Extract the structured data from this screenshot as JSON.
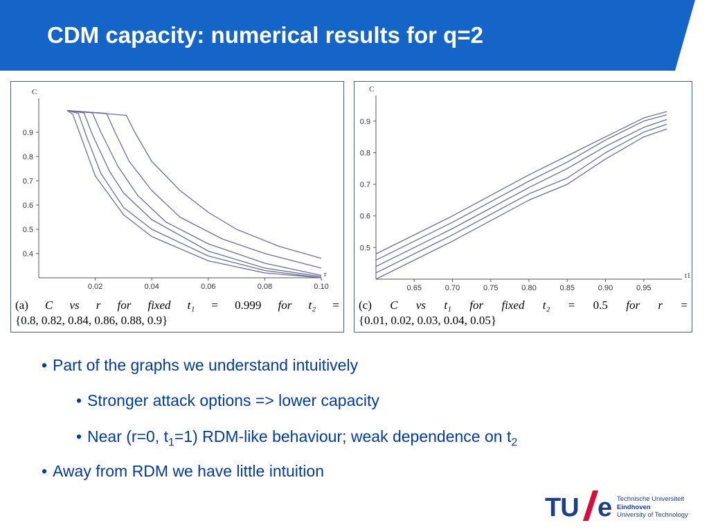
{
  "slide": {
    "title": "CDM capacity: numerical results for q=2",
    "header_color": "#1565c8"
  },
  "chart_data": [
    {
      "type": "line",
      "ylabel": "C",
      "xlabel": "r",
      "xlim": [
        0,
        0.1
      ],
      "ylim": [
        0.3,
        1.0
      ],
      "xticks": [
        "0.02",
        "0.04",
        "0.06",
        "0.08",
        "0.10"
      ],
      "yticks": [
        "0.4",
        "0.5",
        "0.6",
        "0.7",
        "0.8",
        "0.9"
      ],
      "caption_line1": [
        "(a)",
        "C",
        "vs",
        "r",
        "for",
        "fixed",
        "t₁",
        "=",
        "0.999",
        "for",
        "t₂",
        "="
      ],
      "caption_line2": "{0.8, 0.82, 0.84, 0.86, 0.88, 0.9}",
      "line_color": "#6b6c9a",
      "series": [
        {
          "x": [
            0.01,
            0.012,
            0.015,
            0.02,
            0.03,
            0.04,
            0.06,
            0.08,
            0.1
          ],
          "y": [
            0.99,
            0.975,
            0.88,
            0.72,
            0.56,
            0.47,
            0.37,
            0.32,
            0.3
          ]
        },
        {
          "x": [
            0.01,
            0.014,
            0.017,
            0.022,
            0.03,
            0.04,
            0.06,
            0.08,
            0.1
          ],
          "y": [
            0.99,
            0.978,
            0.88,
            0.73,
            0.59,
            0.5,
            0.39,
            0.33,
            0.3
          ]
        },
        {
          "x": [
            0.01,
            0.016,
            0.019,
            0.025,
            0.03,
            0.04,
            0.06,
            0.08,
            0.1
          ],
          "y": [
            0.99,
            0.98,
            0.89,
            0.74,
            0.65,
            0.54,
            0.41,
            0.34,
            0.305
          ]
        },
        {
          "x": [
            0.01,
            0.019,
            0.022,
            0.028,
            0.035,
            0.045,
            0.06,
            0.08,
            0.1
          ],
          "y": [
            0.99,
            0.98,
            0.9,
            0.76,
            0.64,
            0.53,
            0.44,
            0.36,
            0.31
          ]
        },
        {
          "x": [
            0.01,
            0.024,
            0.027,
            0.032,
            0.04,
            0.05,
            0.065,
            0.08,
            0.1
          ],
          "y": [
            0.99,
            0.978,
            0.9,
            0.78,
            0.66,
            0.55,
            0.46,
            0.4,
            0.34
          ]
        },
        {
          "x": [
            0.01,
            0.031,
            0.034,
            0.04,
            0.05,
            0.06,
            0.07,
            0.085,
            0.1
          ],
          "y": [
            0.99,
            0.97,
            0.9,
            0.78,
            0.66,
            0.57,
            0.5,
            0.43,
            0.38
          ]
        }
      ]
    },
    {
      "type": "line",
      "ylabel": "C",
      "xlabel": "t1",
      "xlim": [
        0.6,
        1.0
      ],
      "ylim": [
        0.4,
        0.95
      ],
      "xticks": [
        "0.65",
        "0.70",
        "0.75",
        "0.80",
        "0.85",
        "0.90",
        "0.95"
      ],
      "yticks": [
        "0.5",
        "0.6",
        "0.7",
        "0.8",
        "0.9"
      ],
      "caption_line1": [
        "(c)",
        "C",
        "vs",
        "t₁",
        "for",
        "fixed",
        "t₂",
        "=",
        "0.5",
        "for",
        "r",
        "="
      ],
      "caption_line2": "{0.01, 0.02, 0.03, 0.04, 0.05}",
      "line_color": "#6b6c9a",
      "series": [
        {
          "x": [
            0.6,
            0.7,
            0.8,
            0.85,
            0.9,
            0.95,
            0.98
          ],
          "y": [
            0.48,
            0.6,
            0.73,
            0.79,
            0.85,
            0.91,
            0.93
          ]
        },
        {
          "x": [
            0.6,
            0.7,
            0.8,
            0.85,
            0.9,
            0.95,
            0.98
          ],
          "y": [
            0.46,
            0.58,
            0.71,
            0.77,
            0.84,
            0.9,
            0.92
          ]
        },
        {
          "x": [
            0.6,
            0.7,
            0.8,
            0.85,
            0.9,
            0.95,
            0.98
          ],
          "y": [
            0.44,
            0.56,
            0.69,
            0.75,
            0.82,
            0.88,
            0.905
          ]
        },
        {
          "x": [
            0.6,
            0.7,
            0.8,
            0.85,
            0.9,
            0.95,
            0.98
          ],
          "y": [
            0.42,
            0.54,
            0.67,
            0.72,
            0.8,
            0.865,
            0.89
          ]
        },
        {
          "x": [
            0.6,
            0.7,
            0.8,
            0.85,
            0.9,
            0.95,
            0.98
          ],
          "y": [
            0.4,
            0.52,
            0.65,
            0.7,
            0.78,
            0.85,
            0.875
          ]
        }
      ]
    }
  ],
  "bullets": [
    {
      "text": "Part of the graphs we understand intuitively",
      "level": 1
    },
    {
      "text": "Stronger attack options => lower capacity",
      "level": 2
    },
    {
      "text_before": "Near (r=0, t",
      "sub1": "1",
      "text_mid": "=1) RDM-like behaviour; weak dependence on t",
      "sub2": "2",
      "level": 2
    },
    {
      "text": "Away from RDM we have little intuition",
      "level": 1
    }
  ],
  "bullet_glyph": "•",
  "logo": {
    "mark": "TU",
    "e": "e",
    "line1": "Technische Universiteit",
    "line2": "Eindhoven",
    "line3": "University of Technology"
  }
}
